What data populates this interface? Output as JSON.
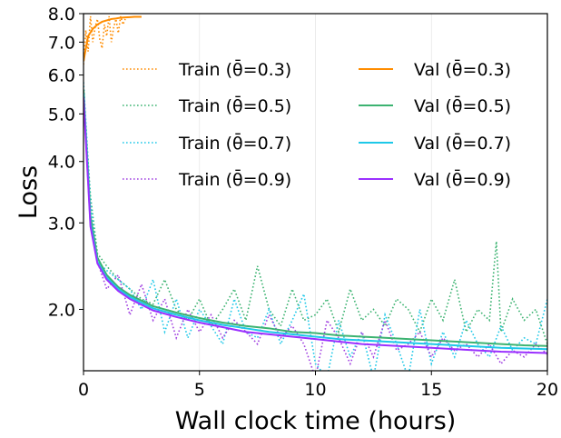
{
  "chart_data": {
    "type": "line",
    "xlabel": "Wall clock time (hours)",
    "ylabel": "Loss",
    "xlim": [
      0,
      20
    ],
    "ylim": [
      1.5,
      8.0
    ],
    "yscale": "log",
    "xticks": [
      0,
      5,
      10,
      15,
      20
    ],
    "xtick_labels": [
      "0",
      "5",
      "10",
      "15",
      "20"
    ],
    "yticks": [
      2.0,
      3.0,
      4.0,
      5.0,
      6.0,
      7.0,
      8.0
    ],
    "ytick_labels": [
      "2.0",
      "3.0",
      "4.0",
      "5.0",
      "6.0",
      "7.0",
      "8.0"
    ],
    "grid": "vertical",
    "legend": {
      "placement": "upper-center",
      "columns": 2
    },
    "series": [
      {
        "name": "Train (θ̄=0.3)",
        "color": "#ff8c00",
        "style": "dotted",
        "x": [
          0,
          0.1,
          0.2,
          0.3,
          0.4,
          0.5,
          0.6,
          0.7,
          0.8,
          0.9,
          1.0,
          1.1,
          1.2,
          1.3,
          1.4,
          1.5,
          1.6,
          1.7,
          1.8
        ],
        "y": [
          6.3,
          7.4,
          6.7,
          7.9,
          7.0,
          7.5,
          7.8,
          7.1,
          6.8,
          7.6,
          7.2,
          7.9,
          7.0,
          7.5,
          7.8,
          7.3,
          7.9,
          7.6,
          7.8
        ]
      },
      {
        "name": "Train (θ̄=0.5)",
        "color": "#3cb371",
        "style": "dotted",
        "x": [
          0,
          0.3,
          0.6,
          1,
          1.5,
          2,
          2.5,
          3,
          3.5,
          4,
          4.5,
          5,
          5.5,
          6,
          6.5,
          7,
          7.5,
          8,
          8.5,
          9,
          9.5,
          10,
          10.5,
          11,
          11.5,
          12,
          12.5,
          13,
          13.5,
          14,
          14.5,
          15,
          15.5,
          16,
          16.5,
          17,
          17.5,
          17.8,
          18,
          18.5,
          19,
          19.5,
          20
        ],
        "y": [
          5.5,
          3.4,
          2.6,
          2.45,
          2.3,
          2.2,
          2.1,
          2.05,
          2.3,
          2.0,
          1.9,
          2.1,
          1.85,
          2.0,
          2.2,
          1.9,
          2.45,
          2.0,
          1.85,
          2.2,
          1.9,
          1.95,
          2.1,
          1.8,
          2.2,
          1.9,
          2.0,
          1.85,
          2.1,
          2.0,
          1.8,
          2.1,
          1.9,
          2.3,
          1.8,
          2.0,
          1.9,
          2.75,
          1.8,
          2.1,
          1.9,
          2.0,
          1.7
        ]
      },
      {
        "name": "Train (θ̄=0.7)",
        "color": "#1ec8e8",
        "style": "dotted",
        "x": [
          0,
          0.3,
          0.6,
          1,
          1.5,
          2,
          2.5,
          3,
          3.5,
          4,
          4.5,
          5,
          5.5,
          6,
          6.5,
          7,
          7.5,
          8,
          8.5,
          9,
          9.5,
          10,
          10.5,
          11,
          11.5,
          12,
          12.5,
          13,
          13.5,
          14,
          14.5,
          15,
          15.5,
          16,
          16.5,
          17,
          17.5,
          18,
          18.5,
          19,
          19.5,
          20
        ],
        "y": [
          5.8,
          3.3,
          2.5,
          2.4,
          2.3,
          2.2,
          2.0,
          2.3,
          1.8,
          2.1,
          1.75,
          2.0,
          1.85,
          1.7,
          2.1,
          1.8,
          1.75,
          2.0,
          1.7,
          1.9,
          2.15,
          1.55,
          1.45,
          1.9,
          1.6,
          1.8,
          1.45,
          1.95,
          1.7,
          1.45,
          2.0,
          1.55,
          1.8,
          1.6,
          1.9,
          1.7,
          1.6,
          1.85,
          1.65,
          1.75,
          1.7,
          2.1
        ]
      },
      {
        "name": "Train (θ̄=0.9)",
        "color": "#a040e0",
        "style": "dotted",
        "x": [
          0,
          0.3,
          0.6,
          1,
          1.5,
          2,
          2.5,
          3,
          3.5,
          4,
          4.5,
          5,
          5.5,
          6,
          6.5,
          7,
          7.5,
          8,
          8.5,
          9,
          9.5,
          10,
          10.5,
          11,
          11.5,
          12,
          12.5,
          13,
          13.5,
          14,
          14.5,
          15,
          15.5,
          16,
          16.5,
          17,
          17.5,
          18,
          18.5,
          19,
          19.5,
          20
        ],
        "y": [
          5.6,
          3.0,
          2.5,
          2.2,
          2.35,
          1.95,
          2.25,
          1.9,
          2.1,
          1.75,
          2.0,
          1.8,
          1.95,
          1.75,
          1.9,
          1.8,
          1.7,
          1.95,
          1.75,
          1.85,
          1.7,
          1.45,
          1.9,
          1.75,
          1.55,
          1.8,
          1.6,
          1.9,
          1.65,
          1.7,
          1.8,
          1.6,
          1.75,
          1.65,
          1.7,
          1.6,
          1.7,
          1.55,
          1.65,
          1.6,
          1.7,
          1.62
        ]
      },
      {
        "name": "Val (θ̄=0.3)",
        "color": "#ff8c00",
        "style": "solid",
        "x": [
          0,
          0.2,
          0.4,
          0.6,
          0.8,
          1.0,
          1.2,
          1.4,
          1.6,
          1.8,
          2.0,
          2.2,
          2.5
        ],
        "y": [
          6.4,
          7.2,
          7.45,
          7.6,
          7.7,
          7.75,
          7.8,
          7.82,
          7.85,
          7.86,
          7.87,
          7.88,
          7.88
        ]
      },
      {
        "name": "Val (θ̄=0.5)",
        "color": "#3cb371",
        "style": "solid",
        "x": [
          0,
          0.3,
          0.6,
          1,
          1.5,
          2,
          3,
          4,
          5,
          6,
          7,
          8,
          9,
          10,
          11,
          12,
          13,
          14,
          15,
          16,
          17,
          18,
          19,
          20
        ],
        "y": [
          5.6,
          3.1,
          2.55,
          2.35,
          2.22,
          2.14,
          2.03,
          1.97,
          1.92,
          1.88,
          1.85,
          1.83,
          1.8,
          1.79,
          1.77,
          1.76,
          1.75,
          1.74,
          1.73,
          1.72,
          1.71,
          1.7,
          1.69,
          1.685
        ]
      },
      {
        "name": "Val (θ̄=0.7)",
        "color": "#1ec8e8",
        "style": "solid",
        "x": [
          0,
          0.3,
          0.6,
          1,
          1.5,
          2,
          3,
          4,
          5,
          6,
          7,
          8,
          9,
          10,
          11,
          12,
          13,
          14,
          15,
          16,
          17,
          18,
          19,
          20
        ],
        "y": [
          5.5,
          3.0,
          2.5,
          2.32,
          2.2,
          2.12,
          2.01,
          1.95,
          1.9,
          1.86,
          1.83,
          1.8,
          1.78,
          1.76,
          1.74,
          1.73,
          1.72,
          1.71,
          1.7,
          1.69,
          1.68,
          1.67,
          1.665,
          1.66
        ]
      },
      {
        "name": "Val (θ̄=0.9)",
        "color": "#9b30ff",
        "style": "solid",
        "x": [
          0,
          0.3,
          0.6,
          1,
          1.5,
          2,
          3,
          4,
          5,
          6,
          7,
          8,
          9,
          10,
          11,
          12,
          13,
          14,
          15,
          16,
          17,
          18,
          19,
          20
        ],
        "y": [
          5.4,
          2.95,
          2.48,
          2.3,
          2.18,
          2.1,
          1.99,
          1.93,
          1.88,
          1.84,
          1.8,
          1.78,
          1.76,
          1.74,
          1.72,
          1.7,
          1.69,
          1.68,
          1.67,
          1.66,
          1.65,
          1.64,
          1.635,
          1.63
        ]
      }
    ]
  }
}
